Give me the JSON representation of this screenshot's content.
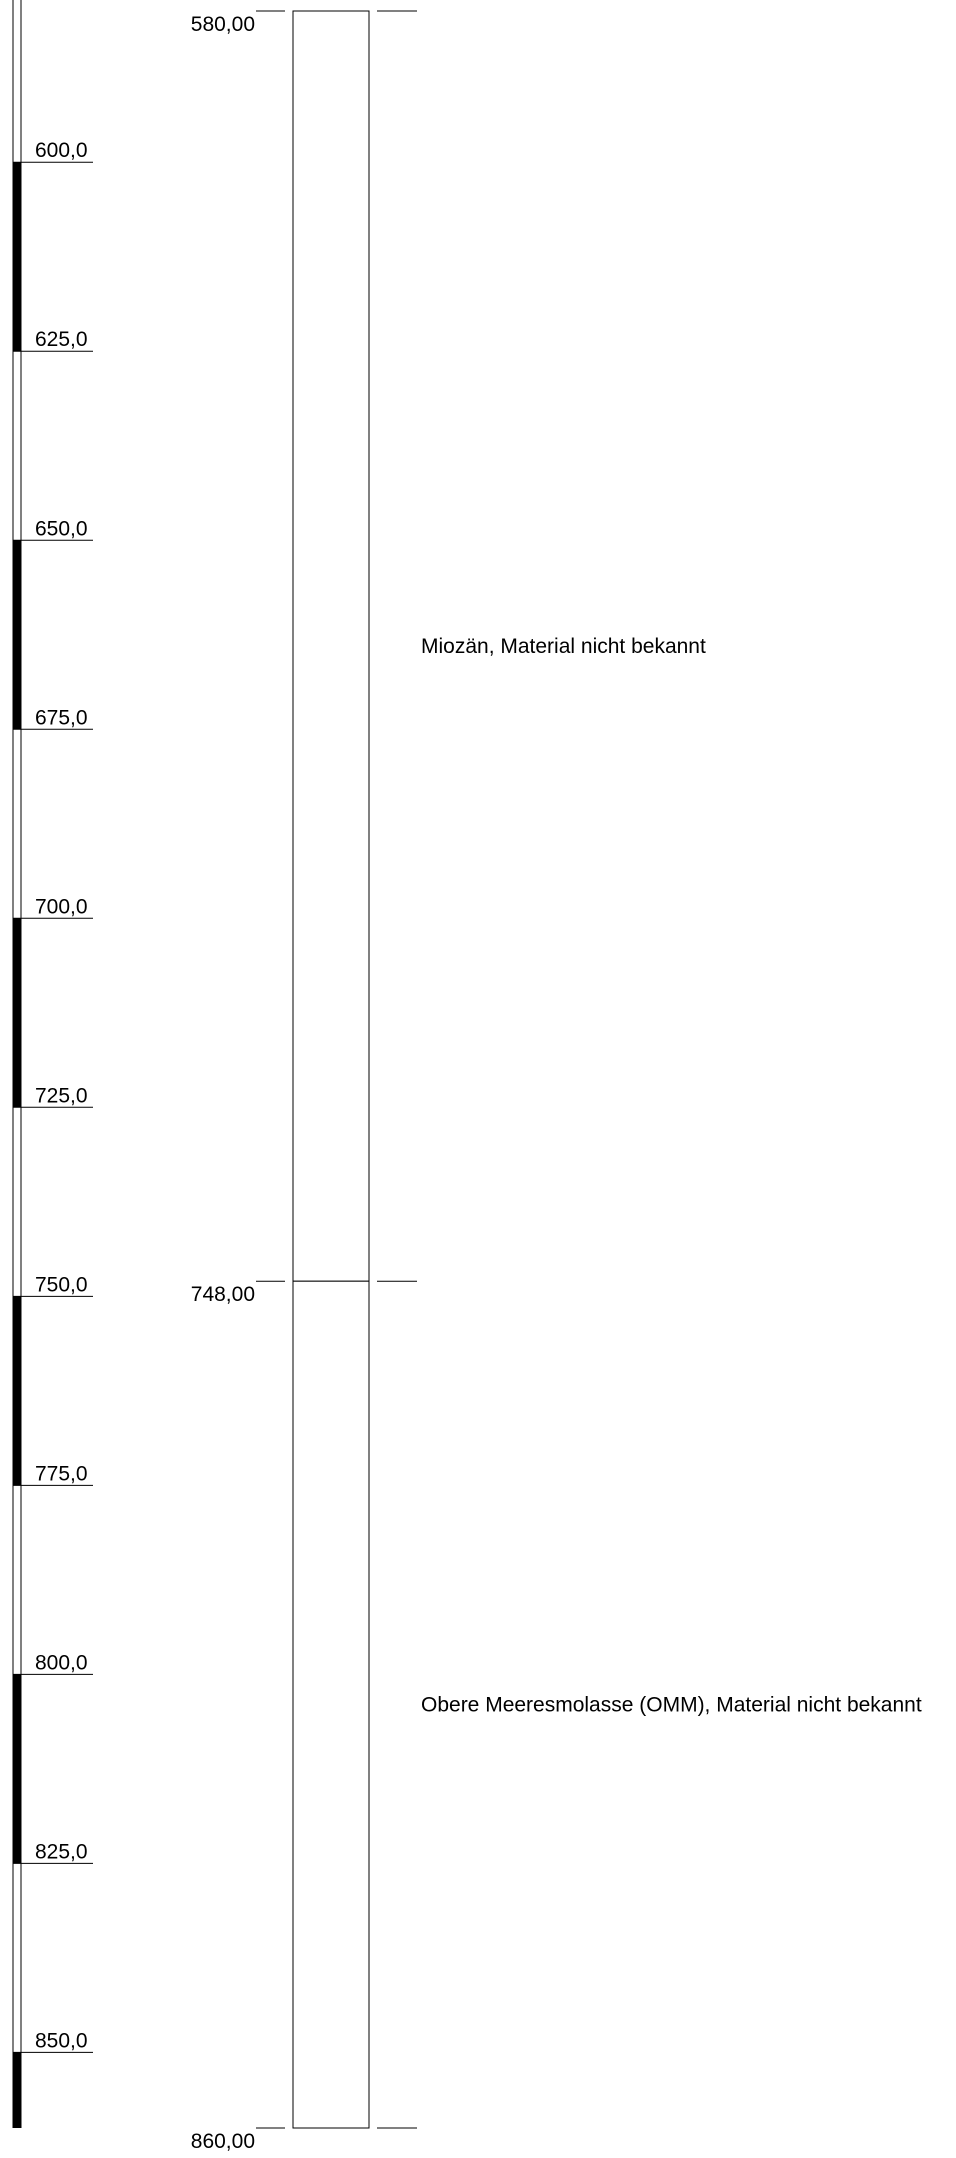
{
  "depth_scale": {
    "start_depth": 580.0,
    "end_depth": 860.0,
    "tick_values": [
      600,
      625,
      650,
      675,
      700,
      725,
      750,
      775,
      800,
      825,
      850
    ],
    "tick_labels": [
      "600,0",
      "625,0",
      "650,0",
      "675,0",
      "700,0",
      "725,0",
      "750,0",
      "775,0",
      "800,0",
      "825,0",
      "850,0"
    ]
  },
  "layers": [
    {
      "top_label": "580,00",
      "top_depth": 580.0,
      "bottom_depth": 748.0,
      "description": "Miozän, Material nicht bekannt"
    },
    {
      "top_label": "748,00",
      "top_depth": 748.0,
      "bottom_depth": 860.0,
      "description": "Obere Meeresmolasse (OMM), Material nicht bekannt"
    }
  ],
  "base_label": "860,00",
  "base_depth": 860.0,
  "colors": {
    "line": "#000000",
    "fill": "#ffffff"
  }
}
